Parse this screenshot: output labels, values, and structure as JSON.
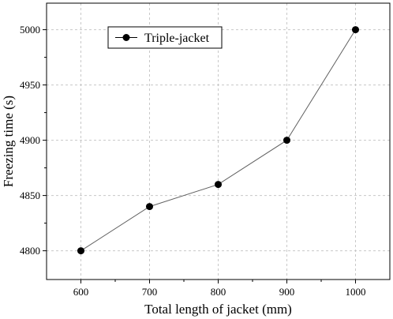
{
  "chart_data": {
    "type": "line",
    "x": [
      600,
      700,
      800,
      900,
      1000
    ],
    "series": [
      {
        "name": "Triple-jacket",
        "values": [
          4800,
          4840,
          4860,
          4900,
          5000
        ]
      }
    ],
    "xlabel": "Total length of jacket (mm)",
    "ylabel": "Freezing time (s)",
    "xlim": [
      550,
      1050
    ],
    "ylim": [
      4774,
      5024
    ],
    "xticks": [
      600,
      700,
      800,
      900,
      1000
    ],
    "yticks": [
      4800,
      4850,
      4900,
      4950,
      5000
    ],
    "grid": true,
    "legend_position": "top-left",
    "colors": {
      "line": "#606060",
      "marker": "#000000",
      "grid": "#c8c8c8",
      "axes": "#000000"
    },
    "marker": "circle"
  }
}
